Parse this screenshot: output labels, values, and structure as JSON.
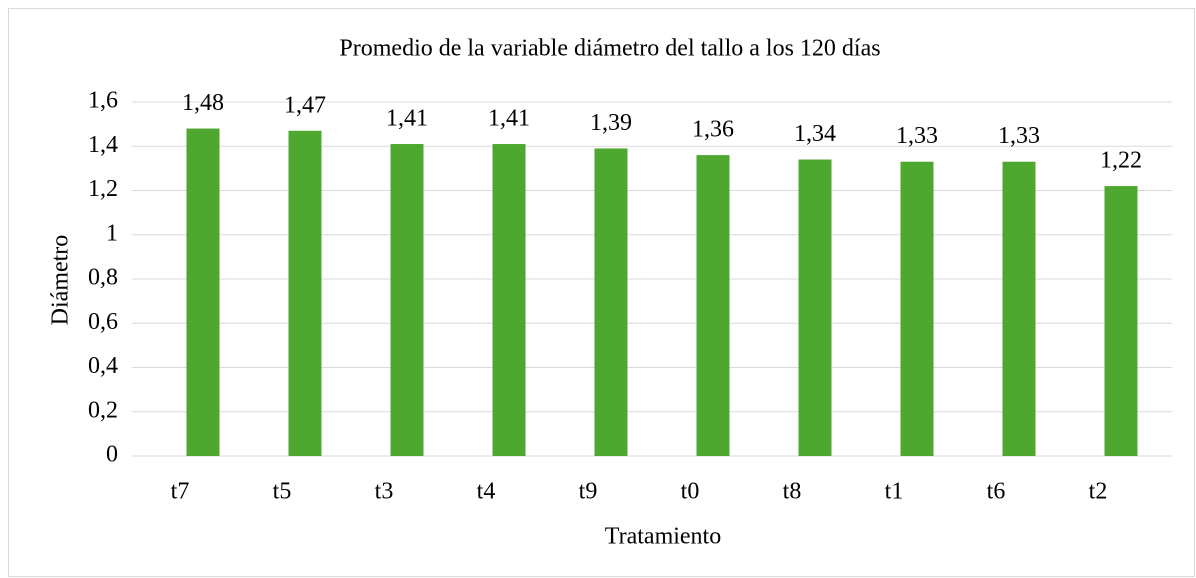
{
  "chart_data": {
    "type": "bar",
    "title": "Promedio de la variable diámetro del tallo a los 120 días",
    "x_label": "Tratamiento",
    "y_label": "Diámetro",
    "categories": [
      "t7",
      "t5",
      "t3",
      "t4",
      "t9",
      "t0",
      "t8",
      "t1",
      "t6",
      "t2"
    ],
    "values": [
      1.48,
      1.47,
      1.41,
      1.41,
      1.39,
      1.36,
      1.34,
      1.33,
      1.33,
      1.22
    ],
    "value_labels": [
      "1,48",
      "1,47",
      "1,41",
      "1,41",
      "1,39",
      "1,36",
      "1,34",
      "1,33",
      "1,33",
      "1,22"
    ],
    "color": "#4ea72e",
    "ylim": [
      0,
      1.6
    ],
    "yticks": [
      0,
      {
        "value": 0.2,
        "label": "0,2"
      },
      {
        "value": 0.4,
        "label": "0,4"
      },
      {
        "value": 0.6,
        "label": "0,6"
      },
      {
        "value": 0.8,
        "label": "0,8"
      },
      1,
      {
        "value": 1.2,
        "label": "1,2"
      },
      {
        "value": 1.4,
        "label": "1,4"
      },
      {
        "value": 1.6,
        "label": "1,6"
      }
    ],
    "grid": true
  }
}
